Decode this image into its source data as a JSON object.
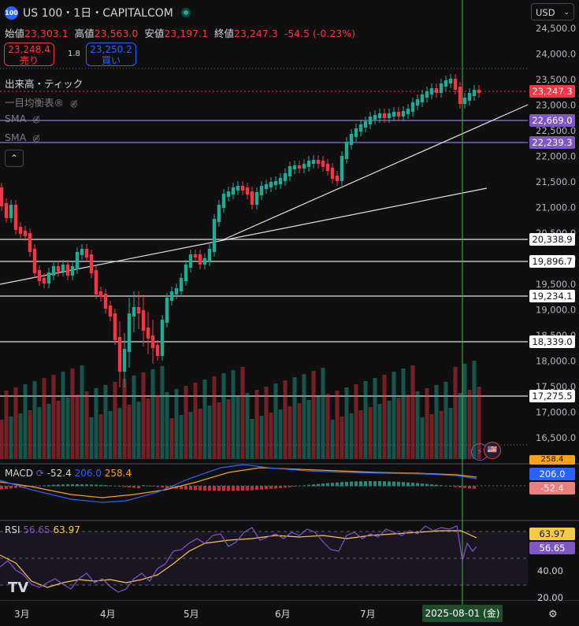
{
  "header": {
    "logo": "100",
    "title": "US 100・1日・CAPITALCOM",
    "status": "market-open-dot"
  },
  "ohlc": {
    "open_label": "始値",
    "open": "23,303.1",
    "high_label": "高値",
    "high": "23,563.0",
    "low_label": "安値",
    "low": "23,197.1",
    "close_label": "終値",
    "close": "23,247.3",
    "change": "-54.5 (-0.23%)"
  },
  "trade": {
    "sell_price": "23,248.4",
    "sell_label": "売り",
    "spread": "1.8",
    "buy_price": "23,250.2",
    "buy_label": "買い"
  },
  "indicators": {
    "volume": "出来高・ティック",
    "ichimoku": "一目均衡表®",
    "sma1": "SMA",
    "sma2": "SMA",
    "hidden_icon": "eye-off-icon"
  },
  "currency": "USD",
  "price_axis": [
    "24,500.0",
    "24,000.0",
    "23,500.0",
    "23,000.0",
    "22,500.0",
    "22,000.0",
    "21,500.0",
    "21,000.0",
    "20,500.0",
    "20,000.0",
    "19,500.0",
    "19,000.0",
    "18,500.0",
    "18,000.0",
    "17,500.0",
    "17,000.0",
    "16,500.0"
  ],
  "price_labels": {
    "last": "23,247.3",
    "sma1": "22,669.0",
    "sma2": "22,239.3",
    "h1": "20,338.9",
    "h2": "19,896.7",
    "h3": "19,234.1",
    "h4": "18,339.0",
    "h5": "17,275.5"
  },
  "macd": {
    "label": "MACD",
    "v1": "-52.4",
    "v2": "206.0",
    "v3": "258.4",
    "axis_top": "258.4",
    "axis_mid": "206.0",
    "axis_bot": "-52.4"
  },
  "rsi": {
    "label": "RSI",
    "v1": "56.65",
    "v2": "63.97",
    "axis": [
      "63.97",
      "56.65",
      "40.00",
      "20.00"
    ]
  },
  "time_axis": [
    "3月",
    "4月",
    "5月",
    "6月",
    "7月"
  ],
  "crosshair_date": "2025-08-01 (金)",
  "colors": {
    "up": "#22ab94",
    "down": "#f23645",
    "purple": "#7e57c2",
    "blue": "#2962ff",
    "orange": "#f7a21b"
  }
}
